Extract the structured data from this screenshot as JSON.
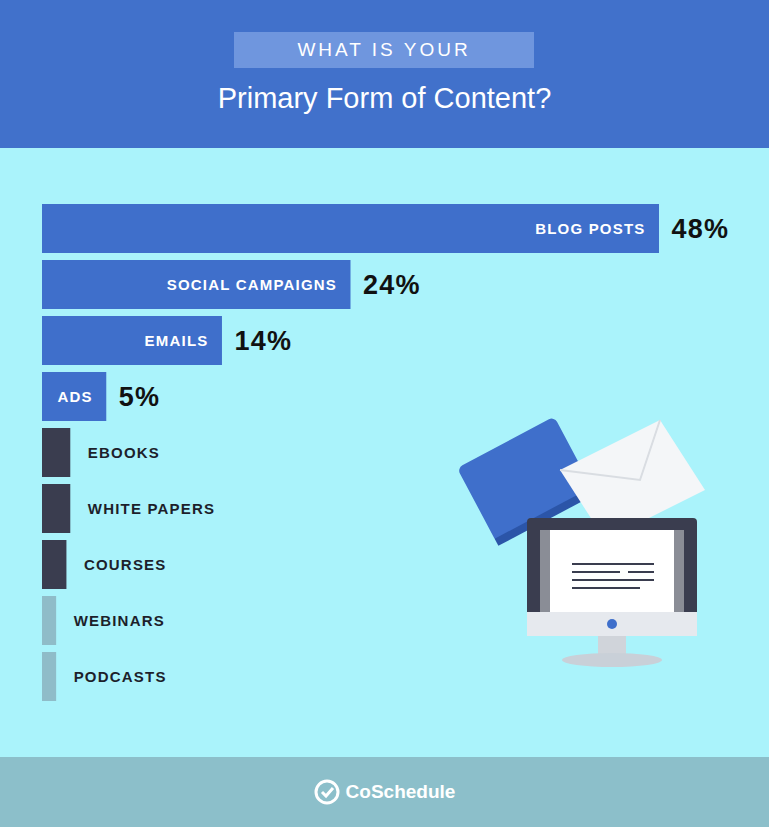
{
  "chart_data": {
    "type": "bar",
    "orientation": "horizontal",
    "subtitle": "WHAT IS YOUR",
    "title": "Primary Form of Content?",
    "categories": [
      "BLOG POSTS",
      "SOCIAL CAMPAIGNS",
      "EMAILS",
      "ADS",
      "EBOOKS",
      "WHITE PAPERS",
      "COURSES",
      "WEBINARS",
      "PODCASTS"
    ],
    "values": [
      48,
      24,
      14,
      5,
      2.2,
      2.2,
      1.9,
      1.1,
      1.1
    ],
    "value_labels": [
      "48%",
      "24%",
      "14%",
      "5%",
      null,
      null,
      null,
      null,
      null
    ],
    "colors": [
      "#3f6fcb",
      "#3f6fcb",
      "#3f6fcb",
      "#3f6fcb",
      "#3a3d4f",
      "#3a3d4f",
      "#3a3d4f",
      "#8fbcc8",
      "#8fbcc8"
    ],
    "xlim": [
      0,
      48
    ],
    "tick_labels": false,
    "data_labels": true,
    "source": "CoSchedule"
  }
}
